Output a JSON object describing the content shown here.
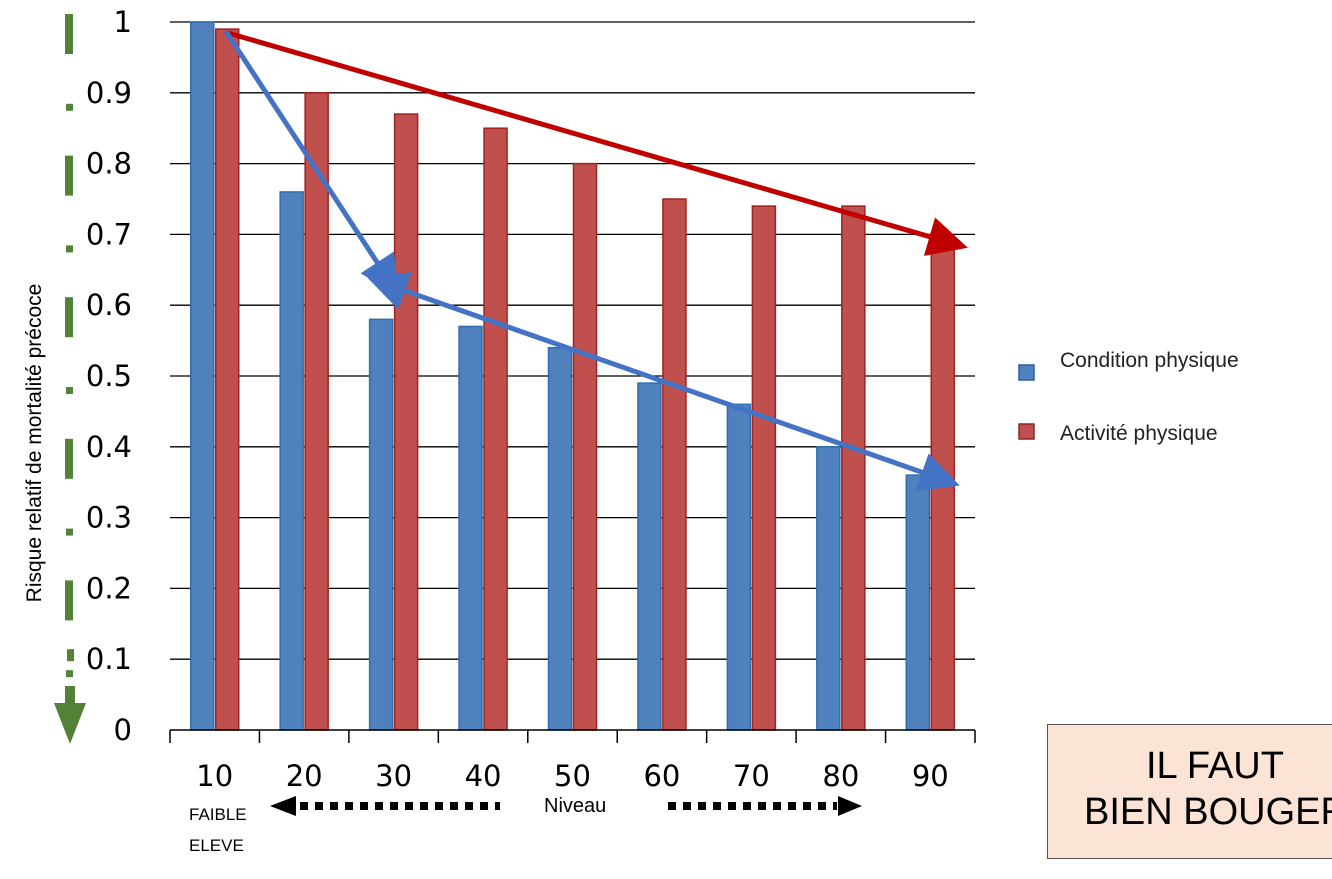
{
  "chart_data": {
    "type": "bar",
    "categories": [
      "10",
      "20",
      "30",
      "40",
      "50",
      "60",
      "70",
      "80",
      "90"
    ],
    "series": [
      {
        "name": "Condition physique",
        "color": "#4f81bd",
        "values": [
          1.0,
          0.76,
          0.58,
          0.57,
          0.54,
          0.49,
          0.46,
          0.4,
          0.36
        ]
      },
      {
        "name": "Activité physique",
        "color": "#c0504d",
        "values": [
          0.99,
          0.9,
          0.87,
          0.85,
          0.8,
          0.75,
          0.74,
          0.74,
          0.69
        ]
      }
    ],
    "yticks": [
      "0",
      "0.1",
      "0.2",
      "0.3",
      "0.4",
      "0.5",
      "0.6",
      "0.7",
      "0.8",
      "0.9",
      "1"
    ],
    "ylim": [
      0,
      1
    ],
    "ylabel": "Risque relatif de mortalité précoce",
    "xlabel": "Niveau",
    "x_low_label": "FAIBLE",
    "x_high_label": "ELEVE",
    "grid": true,
    "legend_position": "right",
    "trend_arrows": [
      {
        "series": "Activité physique",
        "color": "#c00000",
        "from": {
          "x": "10",
          "y": 0.985
        },
        "to": {
          "x": "90",
          "y": 0.685
        }
      },
      {
        "series": "Condition physique",
        "color": "#4472c4",
        "from": {
          "x": "10",
          "y": 0.985
        },
        "to": {
          "x": "30",
          "y": 0.625
        }
      },
      {
        "series": "Condition physique",
        "color": "#4472c4",
        "from": {
          "x": "30",
          "y": 0.625
        },
        "to": {
          "x": "90",
          "y": 0.35
        }
      }
    ]
  },
  "callout": {
    "line1": "IL FAUT",
    "line2": "BIEN BOUGER"
  },
  "colors": {
    "green_marker": "#538135",
    "grid": "#000000"
  }
}
